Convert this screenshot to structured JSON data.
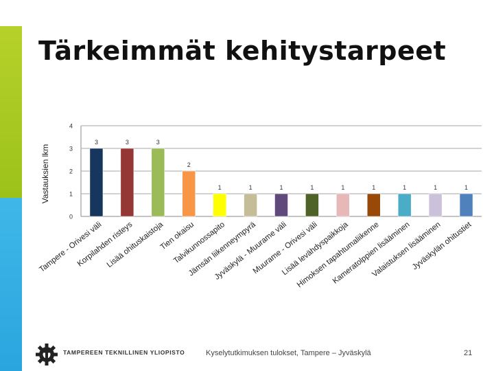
{
  "slide": {
    "title": "Tärkeimmät kehitystarpeet",
    "footer_org": "TAMPEREEN TEKNILLINEN YLIOPISTO",
    "footer_center": "Kyselytutkimuksen tulokset, Tampere – Jyväskylä",
    "page_number": "21",
    "accent_colors": [
      "#9cc21a",
      "#2aa5de"
    ]
  },
  "chart_data": {
    "type": "bar",
    "title": "",
    "xlabel": "",
    "ylabel": "Vastauksien lkm",
    "ylim": [
      0,
      4
    ],
    "yticks": [
      0,
      1,
      2,
      3,
      4
    ],
    "grid": true,
    "legend": "none",
    "categories": [
      "Tampere - Orivesi väli",
      "Korpilahden risteys",
      "Lisää ohituskaistoja",
      "Tien okaisu",
      "Talvikunnossapito",
      "Jämsän liikenneympyrä",
      "Jyväskylä - Muurame väli",
      "Muurame - Orivesi väli",
      "Lisää levähdyspaikkoja",
      "Himoksen tapahtumaliikenne",
      "Kameratolppien lisääminen",
      "Valaistuksen lisääminen",
      "Jyväskylän ohitustiet"
    ],
    "values": [
      3,
      3,
      3,
      2,
      1,
      1,
      1,
      1,
      1,
      1,
      1,
      1,
      1
    ],
    "colors": [
      "#17365d",
      "#953735",
      "#9bbb59",
      "#f79646",
      "#ffff00",
      "#c4bd97",
      "#604a7b",
      "#4f6228",
      "#e6b9b8",
      "#984807",
      "#4bacc6",
      "#ccc1da",
      "#4f81bd"
    ]
  }
}
